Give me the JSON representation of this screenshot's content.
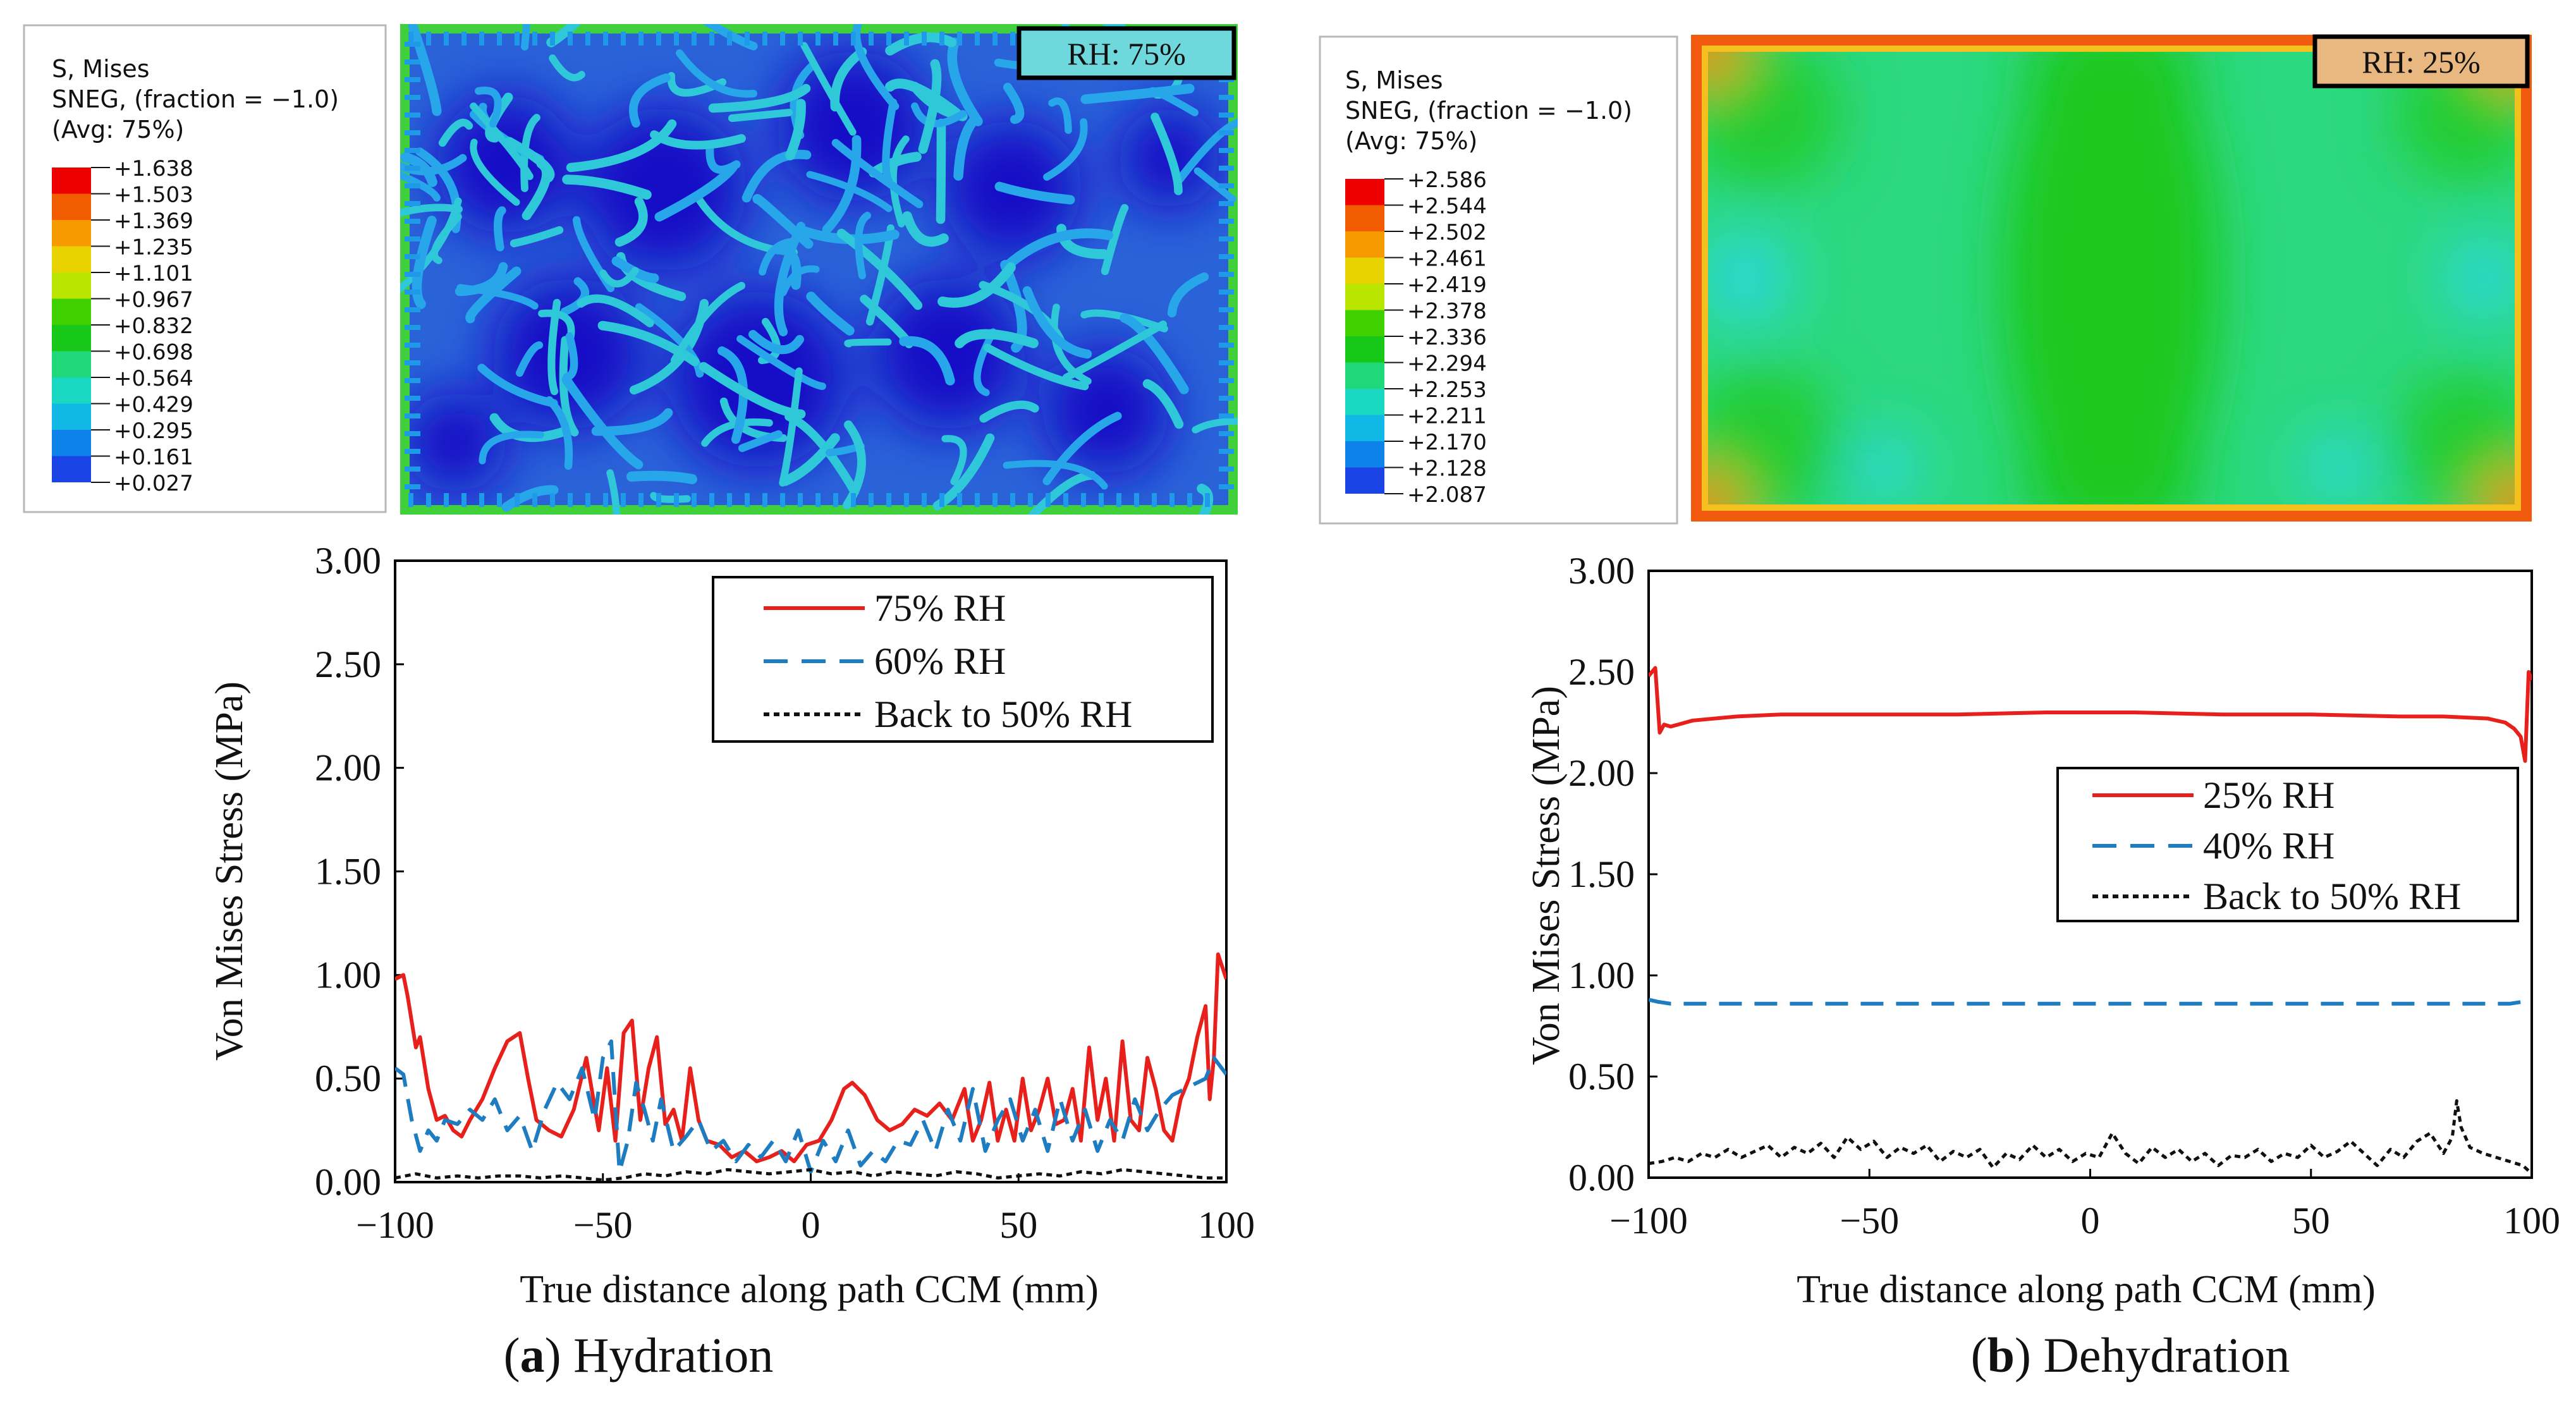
{
  "panels": [
    {
      "id": "a",
      "letter": "a",
      "caption": "Hydration",
      "contour": {
        "legend_title": [
          "S, Mises",
          "SNEG, (fraction = −1.0)",
          "(Avg: 75%)"
        ],
        "legend_values": [
          "+1.638",
          "+1.503",
          "+1.369",
          "+1.235",
          "+1.101",
          "+0.967",
          "+0.832",
          "+0.698",
          "+0.564",
          "+0.429",
          "+0.295",
          "+0.161",
          "+0.027"
        ],
        "legend_colors": [
          "#ee0000",
          "#f25c00",
          "#f59a00",
          "#e8d200",
          "#b8e600",
          "#3ed000",
          "#18c818",
          "#1fd87a",
          "#18d8c2",
          "#11b8e6",
          "#0e82e8",
          "#1a44e6",
          "#1010c8"
        ],
        "label": "RH: 75%"
      }
    },
    {
      "id": "b",
      "letter": "b",
      "caption": "Dehydration",
      "contour": {
        "legend_title": [
          "S, Mises",
          "SNEG, (fraction = −1.0)",
          "(Avg: 75%)"
        ],
        "legend_values": [
          "+2.586",
          "+2.544",
          "+2.502",
          "+2.461",
          "+2.419",
          "+2.378",
          "+2.336",
          "+2.294",
          "+2.253",
          "+2.211",
          "+2.170",
          "+2.128",
          "+2.087"
        ],
        "legend_colors": [
          "#ee0000",
          "#f25c00",
          "#f59a00",
          "#e8d200",
          "#b8e600",
          "#3ed000",
          "#18c818",
          "#1fd87a",
          "#18d8c2",
          "#11b8e6",
          "#0e82e8",
          "#1a44e6",
          "#1010c8"
        ],
        "label": "RH: 25%"
      }
    }
  ],
  "chart_data": [
    {
      "type": "line",
      "panel": "a",
      "title": "",
      "xlabel": "True distance along path CCM (mm)",
      "ylabel": "Von Mises Stress (MPa)",
      "xlim": [
        -100,
        100
      ],
      "ylim": [
        0,
        3
      ],
      "xticks": [
        -100,
        -50,
        0,
        50,
        100
      ],
      "xtick_labels": [
        "−100",
        "−50",
        "0",
        "50",
        "100"
      ],
      "yticks": [
        0,
        0.5,
        1,
        1.5,
        2,
        2.5,
        3
      ],
      "ytick_labels": [
        "0.00",
        "0.50",
        "1.00",
        "1.50",
        "2.00",
        "2.50",
        "3.00"
      ],
      "legend_position": "top-right",
      "series": [
        {
          "name": "75% RH",
          "color": "#e8201c",
          "style": "solid",
          "x": [
            -100,
            -98,
            -97,
            -95,
            -94,
            -92,
            -90,
            -88,
            -86,
            -84,
            -82,
            -79,
            -76,
            -73,
            -70,
            -68,
            -66,
            -63,
            -60,
            -57,
            -54,
            -51,
            -49,
            -47,
            -45,
            -43,
            -41,
            -39,
            -37,
            -35,
            -33,
            -31,
            -29,
            -27,
            -25,
            -22,
            -19,
            -16,
            -13,
            -10,
            -7,
            -4,
            -1,
            2,
            5,
            8,
            10,
            13,
            16,
            19,
            22,
            25,
            28,
            31,
            34,
            37,
            39,
            41,
            43,
            45,
            47,
            49,
            51,
            53,
            55,
            57,
            59,
            61,
            63,
            65,
            67,
            69,
            71,
            73,
            75,
            77,
            79,
            81,
            83,
            85,
            87,
            89,
            91,
            93,
            95,
            96,
            97,
            98,
            100
          ],
          "y": [
            0.98,
            1.0,
            0.9,
            0.65,
            0.7,
            0.45,
            0.3,
            0.32,
            0.25,
            0.22,
            0.3,
            0.4,
            0.55,
            0.68,
            0.72,
            0.5,
            0.3,
            0.25,
            0.22,
            0.35,
            0.6,
            0.25,
            0.55,
            0.2,
            0.72,
            0.78,
            0.3,
            0.55,
            0.7,
            0.28,
            0.35,
            0.2,
            0.55,
            0.3,
            0.2,
            0.18,
            0.12,
            0.15,
            0.1,
            0.12,
            0.15,
            0.1,
            0.18,
            0.2,
            0.3,
            0.45,
            0.48,
            0.42,
            0.3,
            0.25,
            0.28,
            0.35,
            0.32,
            0.38,
            0.3,
            0.45,
            0.2,
            0.3,
            0.48,
            0.2,
            0.35,
            0.2,
            0.5,
            0.25,
            0.35,
            0.5,
            0.28,
            0.3,
            0.45,
            0.2,
            0.65,
            0.3,
            0.5,
            0.2,
            0.68,
            0.3,
            0.25,
            0.6,
            0.45,
            0.25,
            0.2,
            0.4,
            0.5,
            0.7,
            0.85,
            0.4,
            0.6,
            1.1,
            0.98
          ]
        },
        {
          "name": "60% RH",
          "color": "#1e7cc0",
          "style": "dashed",
          "x": [
            -100,
            -98,
            -96,
            -94,
            -92,
            -90,
            -88,
            -85,
            -82,
            -79,
            -76,
            -73,
            -70,
            -67,
            -64,
            -61,
            -58,
            -55,
            -52,
            -50,
            -48,
            -46,
            -44,
            -42,
            -40,
            -38,
            -36,
            -33,
            -30,
            -27,
            -24,
            -21,
            -18,
            -15,
            -12,
            -9,
            -6,
            -3,
            0,
            3,
            6,
            9,
            12,
            15,
            18,
            21,
            24,
            27,
            30,
            33,
            36,
            39,
            42,
            45,
            48,
            51,
            54,
            57,
            60,
            63,
            66,
            69,
            72,
            75,
            78,
            81,
            84,
            87,
            90,
            93,
            95,
            97,
            100
          ],
          "y": [
            0.55,
            0.52,
            0.3,
            0.15,
            0.25,
            0.2,
            0.3,
            0.28,
            0.35,
            0.3,
            0.4,
            0.25,
            0.32,
            0.15,
            0.35,
            0.48,
            0.4,
            0.55,
            0.3,
            0.6,
            0.68,
            0.05,
            0.2,
            0.48,
            0.35,
            0.2,
            0.4,
            0.15,
            0.22,
            0.3,
            0.15,
            0.2,
            0.1,
            0.18,
            0.12,
            0.2,
            0.1,
            0.25,
            0.05,
            0.2,
            0.1,
            0.25,
            0.08,
            0.15,
            0.1,
            0.2,
            0.18,
            0.3,
            0.15,
            0.35,
            0.2,
            0.45,
            0.15,
            0.3,
            0.4,
            0.2,
            0.35,
            0.15,
            0.4,
            0.2,
            0.35,
            0.15,
            0.3,
            0.2,
            0.4,
            0.25,
            0.35,
            0.42,
            0.45,
            0.48,
            0.5,
            0.6,
            0.52
          ]
        },
        {
          "name": "Back to 50% RH",
          "color": "#111111",
          "style": "dotted",
          "x": [
            -100,
            -95,
            -90,
            -85,
            -80,
            -75,
            -70,
            -65,
            -60,
            -55,
            -50,
            -45,
            -40,
            -35,
            -30,
            -25,
            -20,
            -15,
            -10,
            -5,
            0,
            5,
            10,
            15,
            20,
            25,
            30,
            35,
            40,
            45,
            50,
            55,
            60,
            65,
            70,
            75,
            80,
            85,
            90,
            95,
            100
          ],
          "y": [
            0.02,
            0.04,
            0.02,
            0.03,
            0.02,
            0.03,
            0.03,
            0.02,
            0.03,
            0.02,
            0.01,
            0.02,
            0.04,
            0.03,
            0.05,
            0.04,
            0.06,
            0.05,
            0.04,
            0.05,
            0.06,
            0.04,
            0.05,
            0.03,
            0.05,
            0.04,
            0.03,
            0.05,
            0.04,
            0.02,
            0.03,
            0.04,
            0.03,
            0.05,
            0.04,
            0.06,
            0.05,
            0.04,
            0.03,
            0.02,
            0.02
          ]
        }
      ]
    },
    {
      "type": "line",
      "panel": "b",
      "title": "",
      "xlabel": "True distance along path CCM (mm)",
      "ylabel": "Von Mises Stress (MPa)",
      "xlim": [
        -100,
        100
      ],
      "ylim": [
        0,
        3
      ],
      "xticks": [
        -100,
        -50,
        0,
        50,
        100
      ],
      "xtick_labels": [
        "−100",
        "−50",
        "0",
        "50",
        "100"
      ],
      "yticks": [
        0,
        0.5,
        1,
        1.5,
        2,
        2.5,
        3
      ],
      "ytick_labels": [
        "0.00",
        "0.50",
        "1.00",
        "1.50",
        "2.00",
        "2.50",
        "3.00"
      ],
      "legend_position": "center-right",
      "series": [
        {
          "name": "25% RH",
          "color": "#e8201c",
          "style": "solid",
          "x": [
            -100,
            -98.5,
            -97.5,
            -96.5,
            -95,
            -90,
            -80,
            -70,
            -50,
            -30,
            -10,
            0,
            10,
            30,
            50,
            70,
            80,
            90,
            94,
            96,
            97.5,
            98.5,
            99.3,
            100
          ],
          "y": [
            2.48,
            2.52,
            2.2,
            2.24,
            2.23,
            2.26,
            2.28,
            2.29,
            2.29,
            2.29,
            2.3,
            2.3,
            2.3,
            2.29,
            2.29,
            2.28,
            2.28,
            2.27,
            2.25,
            2.22,
            2.18,
            2.06,
            2.5,
            2.46
          ]
        },
        {
          "name": "40% RH",
          "color": "#1e7cc0",
          "style": "dashed",
          "x": [
            -100,
            -98,
            -95,
            0,
            95,
            98,
            100
          ],
          "y": [
            0.88,
            0.87,
            0.86,
            0.86,
            0.86,
            0.87,
            0.88
          ]
        },
        {
          "name": "Back to 50% RH",
          "color": "#111111",
          "style": "dotted",
          "x": [
            -100,
            -97,
            -94,
            -91,
            -88,
            -85,
            -82,
            -79,
            -76,
            -73,
            -70,
            -67,
            -64,
            -61,
            -58,
            -55,
            -52,
            -49,
            -46,
            -43,
            -40,
            -37,
            -34,
            -31,
            -28,
            -25,
            -22,
            -19,
            -16,
            -13,
            -10,
            -7,
            -4,
            -1,
            2,
            5,
            8,
            11,
            14,
            17,
            20,
            23,
            26,
            29,
            32,
            35,
            38,
            41,
            44,
            47,
            50,
            53,
            56,
            59,
            62,
            65,
            68,
            71,
            74,
            77,
            80,
            82,
            83,
            84,
            86,
            89,
            92,
            95,
            98,
            100
          ],
          "y": [
            0.07,
            0.08,
            0.1,
            0.08,
            0.12,
            0.1,
            0.14,
            0.1,
            0.13,
            0.16,
            0.1,
            0.15,
            0.12,
            0.17,
            0.1,
            0.2,
            0.14,
            0.18,
            0.1,
            0.15,
            0.12,
            0.16,
            0.08,
            0.13,
            0.1,
            0.14,
            0.05,
            0.12,
            0.09,
            0.16,
            0.1,
            0.14,
            0.08,
            0.12,
            0.1,
            0.22,
            0.12,
            0.07,
            0.15,
            0.1,
            0.14,
            0.08,
            0.12,
            0.06,
            0.11,
            0.1,
            0.14,
            0.08,
            0.12,
            0.1,
            0.16,
            0.1,
            0.13,
            0.18,
            0.12,
            0.06,
            0.14,
            0.1,
            0.18,
            0.22,
            0.12,
            0.2,
            0.38,
            0.25,
            0.15,
            0.12,
            0.1,
            0.08,
            0.06,
            0.02
          ]
        }
      ]
    }
  ]
}
